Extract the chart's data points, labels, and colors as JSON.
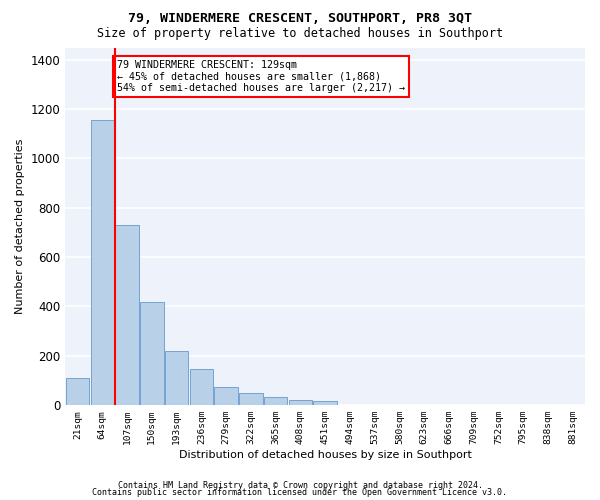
{
  "title": "79, WINDERMERE CRESCENT, SOUTHPORT, PR8 3QT",
  "subtitle": "Size of property relative to detached houses in Southport",
  "xlabel": "Distribution of detached houses by size in Southport",
  "ylabel": "Number of detached properties",
  "bar_color": "#b8d0e8",
  "bar_edge_color": "#6699cc",
  "background_color": "#eef2fb",
  "categories": [
    "21sqm",
    "64sqm",
    "107sqm",
    "150sqm",
    "193sqm",
    "236sqm",
    "279sqm",
    "322sqm",
    "365sqm",
    "408sqm",
    "451sqm",
    "494sqm",
    "537sqm",
    "580sqm",
    "623sqm",
    "666sqm",
    "709sqm",
    "752sqm",
    "795sqm",
    "838sqm",
    "881sqm"
  ],
  "bar_heights": [
    110,
    1155,
    730,
    418,
    218,
    148,
    72,
    48,
    32,
    20,
    15,
    0,
    0,
    0,
    0,
    0,
    0,
    0,
    0,
    0,
    0
  ],
  "ylim": [
    0,
    1450
  ],
  "yticks": [
    0,
    200,
    400,
    600,
    800,
    1000,
    1200,
    1400
  ],
  "property_bar_index": 2,
  "annotation_text": "79 WINDERMERE CRESCENT: 129sqm\n← 45% of detached houses are smaller (1,868)\n54% of semi-detached houses are larger (2,217) →",
  "footnote1": "Contains HM Land Registry data © Crown copyright and database right 2024.",
  "footnote2": "Contains public sector information licensed under the Open Government Licence v3.0."
}
